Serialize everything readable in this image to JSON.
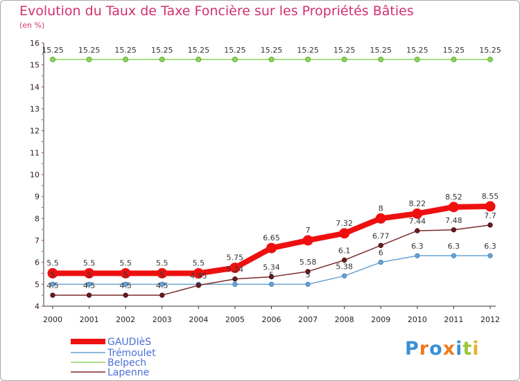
{
  "title": "Evolution du Taux de Taxe Foncière sur les Propriétés Bâties",
  "subtitle": "(en %)",
  "chart_data": {
    "type": "line",
    "title": "Evolution du Taux de Taxe Foncière sur les Propriétés Bâties",
    "ylabel": "(en %)",
    "xlabel": "",
    "ylim": [
      4,
      16
    ],
    "yticks": [
      "4",
      "5",
      "6",
      "7",
      "8",
      "9",
      "10",
      "11",
      "12",
      "13",
      "14",
      "15",
      "16"
    ],
    "grid": false,
    "legend_position": "bottom-left",
    "x": [
      "2000",
      "2001",
      "2002",
      "2003",
      "2004",
      "2005",
      "2006",
      "2007",
      "2008",
      "2009",
      "2010",
      "2011",
      "2012"
    ],
    "series": [
      {
        "name": "GAUDIèS",
        "color": "#ee1010",
        "values": [
          5.5,
          5.5,
          5.5,
          5.5,
          5.5,
          5.75,
          6.65,
          7,
          7.32,
          8,
          8.22,
          8.52,
          8.55
        ],
        "labels": [
          "5.5",
          "5.5",
          "5.5",
          "5.5",
          "5.5",
          "5.75",
          "6.65",
          "7",
          "7.32",
          "8",
          "8.22",
          "8.52",
          "8.55"
        ]
      },
      {
        "name": "Trémoulet",
        "color": "#6aa2cf",
        "values": [
          5,
          5,
          5,
          5,
          5,
          5,
          5,
          5,
          5.38,
          6,
          6.3,
          6.3,
          6.3
        ],
        "labels": [
          "5",
          "5",
          "5",
          "5",
          "",
          "",
          "5",
          "5",
          "5.38",
          "6",
          "6.3",
          "6.3",
          "6.3"
        ]
      },
      {
        "name": "Belpech",
        "color": "#8dd25b",
        "values": [
          15.25,
          15.25,
          15.25,
          15.25,
          15.25,
          15.25,
          15.25,
          15.25,
          15.25,
          15.25,
          15.25,
          15.25,
          15.25
        ],
        "labels": [
          "15.25",
          "15.25",
          "15.25",
          "15.25",
          "15.25",
          "15.25",
          "15.25",
          "15.25",
          "15.25",
          "15.25",
          "15.25",
          "15.25",
          "15.25"
        ]
      },
      {
        "name": "Lapenne",
        "color": "#7a2a2a",
        "values": [
          4.5,
          4.5,
          4.5,
          4.5,
          4.95,
          5.24,
          5.34,
          5.58,
          6.1,
          6.77,
          7.44,
          7.48,
          7.7
        ],
        "labels": [
          "4.5",
          "4.5",
          "4.5",
          "4.5",
          "4.95",
          "5.24",
          "5.34",
          "5.58",
          "6.1",
          "6.77",
          "7.44",
          "7.48",
          "7.7"
        ]
      }
    ]
  },
  "logo": {
    "text": "Proxiti",
    "letter_colors": [
      "#3b8fd6",
      "#f07a1e",
      "#3b8fd6",
      "#f07a1e",
      "#3b8fd6",
      "#9bc63a",
      "#e2b32a"
    ]
  }
}
